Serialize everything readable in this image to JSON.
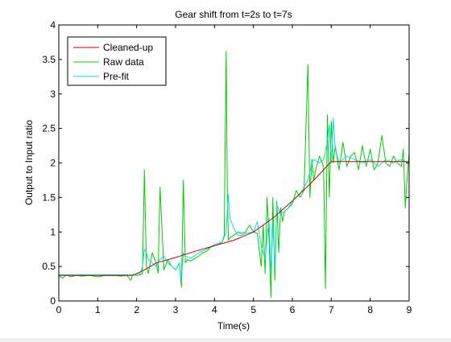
{
  "chart_data": {
    "type": "line",
    "title": "Gear shift from t=2s to t=7s",
    "xlabel": "Time(s)",
    "ylabel": "Output to Input ratio",
    "xlim": [
      0,
      9
    ],
    "ylim": [
      0,
      4
    ],
    "xticks": [
      0,
      1,
      2,
      3,
      4,
      5,
      6,
      7,
      8,
      9
    ],
    "yticks": [
      0,
      0.5,
      1,
      1.5,
      2,
      2.5,
      3,
      3.5,
      4
    ],
    "ytick_labels": [
      "0",
      "0.5",
      "1",
      "1.5",
      "2",
      "2.5",
      "3",
      "3.5",
      "4"
    ],
    "grid": false,
    "legend_position": "top-left",
    "series": [
      {
        "name": "Cleaned-up",
        "color": "#cc0000",
        "x": [
          0,
          1.9,
          2.2,
          2.5,
          3.0,
          3.5,
          4.0,
          4.5,
          5.0,
          5.5,
          6.0,
          6.5,
          6.8,
          7.0,
          7.3,
          7.8,
          8.5,
          9.0
        ],
        "y": [
          0.37,
          0.37,
          0.45,
          0.55,
          0.63,
          0.72,
          0.8,
          0.88,
          1.0,
          1.2,
          1.45,
          1.72,
          1.9,
          2.02,
          2.02,
          2.02,
          2.02,
          2.02
        ]
      },
      {
        "name": "Raw data",
        "color": "#00cc00",
        "x": [
          0,
          0.1,
          0.2,
          0.3,
          0.45,
          0.6,
          0.8,
          1.0,
          1.2,
          1.4,
          1.6,
          1.75,
          1.85,
          1.9,
          1.95,
          2.0,
          2.1,
          2.15,
          2.2,
          2.25,
          2.3,
          2.4,
          2.5,
          2.55,
          2.6,
          2.7,
          2.8,
          2.9,
          3.0,
          3.1,
          3.15,
          3.2,
          3.25,
          3.3,
          3.4,
          3.5,
          3.6,
          3.7,
          3.8,
          3.9,
          4.0,
          4.1,
          4.2,
          4.25,
          4.3,
          4.33,
          4.36,
          4.4,
          4.5,
          4.6,
          4.7,
          4.8,
          4.9,
          5.0,
          5.1,
          5.2,
          5.25,
          5.3,
          5.35,
          5.4,
          5.45,
          5.5,
          5.55,
          5.6,
          5.65,
          5.7,
          5.75,
          5.8,
          5.9,
          6.0,
          6.1,
          6.2,
          6.3,
          6.4,
          6.45,
          6.5,
          6.55,
          6.6,
          6.7,
          6.8,
          6.85,
          6.9,
          6.95,
          7.0,
          7.05,
          7.1,
          7.2,
          7.3,
          7.4,
          7.5,
          7.6,
          7.7,
          7.8,
          7.9,
          8.0,
          8.1,
          8.2,
          8.3,
          8.4,
          8.5,
          8.6,
          8.7,
          8.8,
          8.85,
          8.9,
          8.95,
          9.0
        ],
        "y": [
          0.37,
          0.33,
          0.38,
          0.35,
          0.37,
          0.36,
          0.37,
          0.35,
          0.37,
          0.37,
          0.36,
          0.37,
          0.3,
          0.37,
          0.38,
          0.37,
          0.38,
          0.4,
          1.9,
          0.5,
          0.4,
          0.7,
          0.55,
          0.4,
          1.65,
          0.45,
          0.6,
          0.5,
          0.45,
          0.55,
          0.2,
          1.75,
          0.55,
          0.6,
          0.58,
          0.62,
          0.65,
          0.7,
          0.72,
          0.78,
          0.8,
          0.82,
          0.85,
          0.95,
          3.62,
          1.5,
          0.88,
          0.92,
          0.95,
          1.0,
          0.98,
          1.0,
          1.1,
          1.0,
          0.98,
          0.5,
          1.1,
          0.4,
          1.5,
          0.9,
          0.05,
          1.5,
          0.3,
          1.45,
          0.7,
          1.35,
          1.15,
          1.3,
          1.35,
          1.4,
          1.6,
          1.5,
          1.6,
          3.43,
          1.5,
          2.05,
          1.75,
          1.9,
          2.1,
          1.95,
          0.18,
          2.7,
          1.5,
          2.6,
          2.0,
          2.25,
          1.9,
          2.3,
          1.95,
          2.1,
          2.15,
          1.9,
          2.25,
          1.95,
          2.2,
          1.9,
          2.0,
          2.4,
          2.0,
          1.95,
          2.1,
          2.0,
          1.95,
          2.2,
          1.35,
          1.8,
          2.15
        ]
      },
      {
        "name": "Pre-fit",
        "color": "#00e0e0",
        "x": [
          0,
          1.0,
          1.9,
          2.1,
          2.15,
          2.2,
          2.25,
          2.3,
          2.4,
          2.5,
          2.6,
          2.7,
          2.8,
          2.9,
          3.0,
          3.1,
          3.15,
          3.2,
          3.25,
          3.4,
          3.6,
          3.8,
          4.0,
          4.2,
          4.3,
          4.35,
          4.4,
          4.5,
          4.6,
          4.7,
          4.8,
          5.0,
          5.1,
          5.2,
          5.3,
          5.4,
          5.45,
          5.5,
          5.55,
          5.6,
          5.7,
          5.8,
          5.9,
          6.0,
          6.2,
          6.4,
          6.5,
          6.55,
          6.7,
          6.8,
          6.9,
          6.95,
          7.0,
          7.05,
          7.1,
          7.2,
          7.4,
          7.6,
          7.8,
          8.0,
          8.2,
          8.4,
          8.6,
          8.8,
          9.0
        ],
        "y": [
          0.38,
          0.38,
          0.38,
          0.4,
          0.5,
          0.75,
          0.7,
          0.6,
          0.55,
          0.5,
          0.6,
          0.65,
          0.55,
          0.5,
          0.45,
          0.55,
          0.3,
          0.7,
          0.65,
          0.62,
          0.7,
          0.75,
          0.82,
          0.85,
          1.0,
          1.55,
          1.2,
          1.05,
          0.95,
          0.95,
          0.98,
          1.0,
          1.15,
          0.8,
          0.6,
          1.2,
          0.4,
          1.1,
          0.5,
          1.4,
          1.25,
          1.3,
          1.35,
          1.45,
          1.55,
          1.75,
          2.0,
          2.05,
          2.0,
          2.05,
          2.3,
          2.55,
          2.0,
          2.65,
          2.2,
          2.0,
          2.1,
          2.05,
          2.0,
          2.05,
          1.95,
          2.05,
          2.0,
          2.05,
          2.0
        ]
      }
    ]
  }
}
